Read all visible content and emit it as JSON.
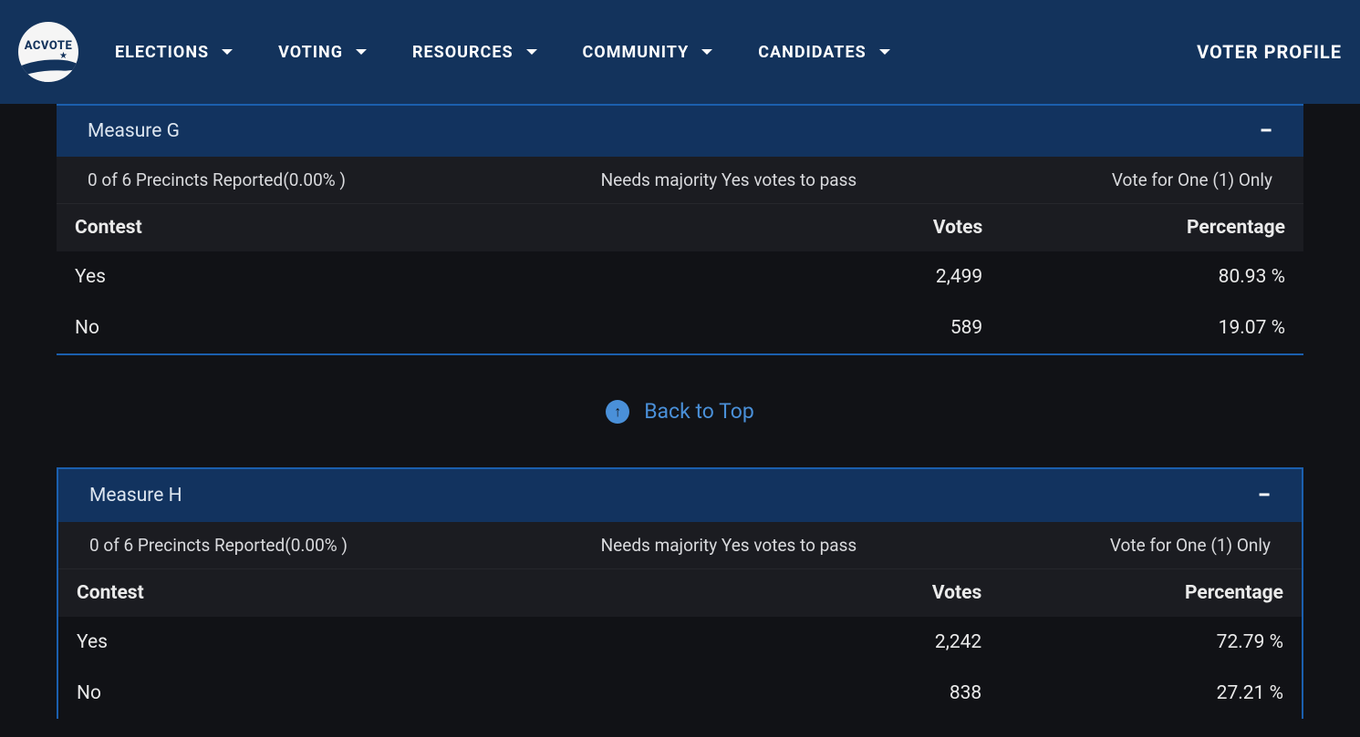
{
  "brand": {
    "logo_text": "ACVOTE"
  },
  "nav": {
    "items": [
      {
        "label": "ELECTIONS"
      },
      {
        "label": "VOTING"
      },
      {
        "label": "RESOURCES"
      },
      {
        "label": "COMMUNITY"
      },
      {
        "label": "CANDIDATES"
      }
    ],
    "right_label": "VOTER PROFILE"
  },
  "back_to_top": "Back to Top",
  "columns": {
    "contest": "Contest",
    "votes": "Votes",
    "percentage": "Percentage"
  },
  "measures": [
    {
      "title": "Measure G",
      "precincts": "0 of 6 Precincts Reported(0.00% )",
      "pass_rule": "Needs majority Yes votes to pass",
      "vote_rule": "Vote for One (1) Only",
      "rows": [
        {
          "option": "Yes",
          "votes": "2,499",
          "pct": "80.93 %"
        },
        {
          "option": "No",
          "votes": "589",
          "pct": "19.07 %"
        }
      ]
    },
    {
      "title": "Measure H",
      "precincts": "0 of 6 Precincts Reported(0.00% )",
      "pass_rule": "Needs majority Yes votes to pass",
      "vote_rule": "Vote for One (1) Only",
      "rows": [
        {
          "option": "Yes",
          "votes": "2,242",
          "pct": "72.79 %"
        },
        {
          "option": "No",
          "votes": "838",
          "pct": "27.21 %"
        }
      ]
    }
  ]
}
